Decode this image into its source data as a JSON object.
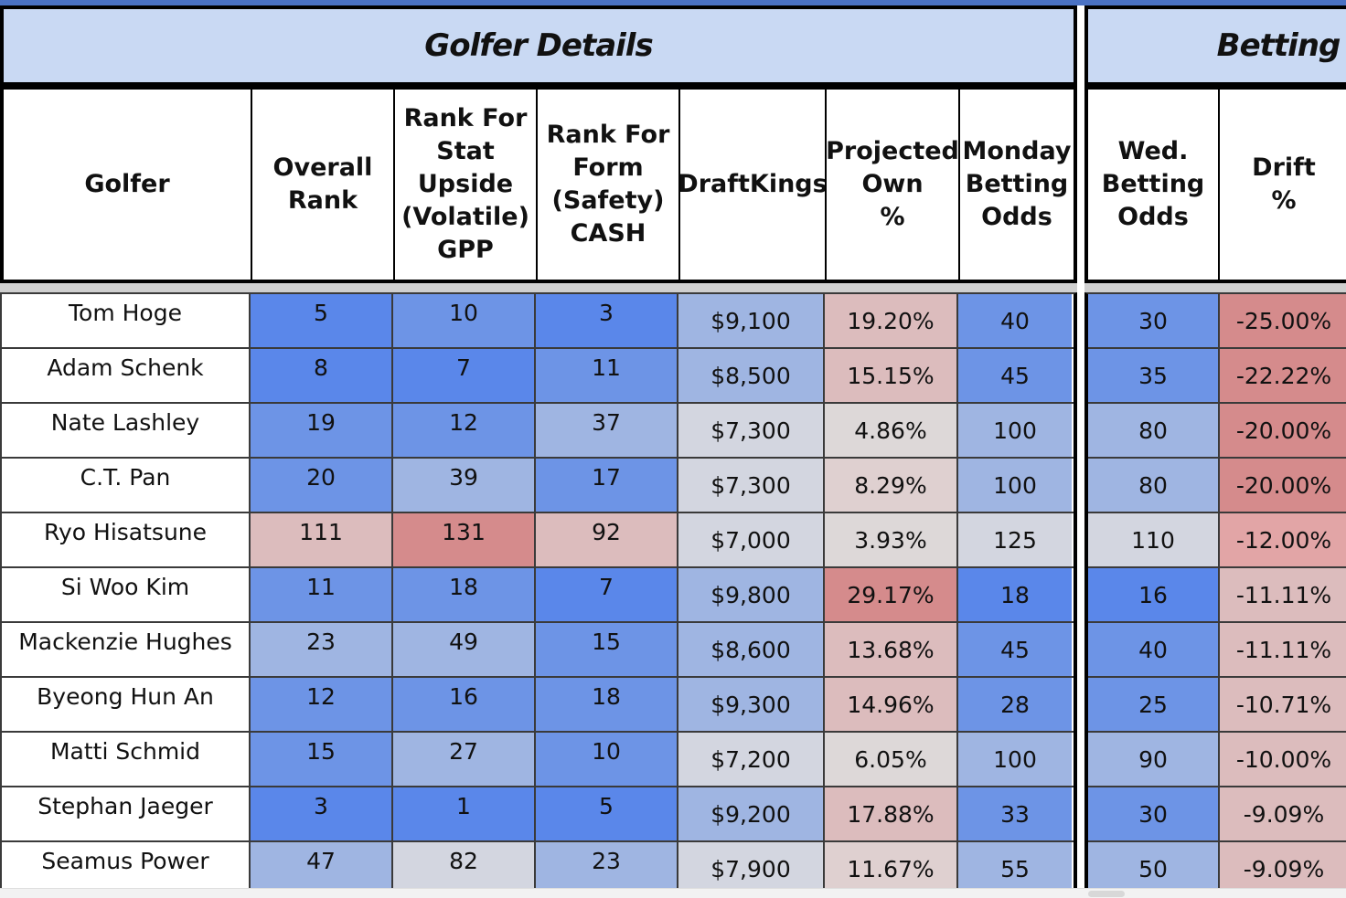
{
  "sections": {
    "golfer_details": "Golfer Details",
    "betting": "Betting"
  },
  "headers_a": [
    "Golfer",
    "Overall\nRank",
    "Rank For\nStat\nUpside\n(Volatile)\nGPP",
    "Rank For\nForm\n(Safety)\nCASH",
    "DraftKings",
    "Projected\nOwn\n%",
    "Monday\nBetting\nOdds"
  ],
  "headers_b": [
    "Wed.\nBetting\nOdds",
    "Drift\n%"
  ],
  "rows": [
    {
      "golfer": "Tom Hoge",
      "overall_rank": "5",
      "gpp_rank": "10",
      "cash_rank": "3",
      "draftkings": "$9,100",
      "proj_own": "19.20%",
      "monday_odds": "40",
      "wed_odds": "30",
      "drift": "-25.00%"
    },
    {
      "golfer": "Adam Schenk",
      "overall_rank": "8",
      "gpp_rank": "7",
      "cash_rank": "11",
      "draftkings": "$8,500",
      "proj_own": "15.15%",
      "monday_odds": "45",
      "wed_odds": "35",
      "drift": "-22.22%"
    },
    {
      "golfer": "Nate Lashley",
      "overall_rank": "19",
      "gpp_rank": "12",
      "cash_rank": "37",
      "draftkings": "$7,300",
      "proj_own": "4.86%",
      "monday_odds": "100",
      "wed_odds": "80",
      "drift": "-20.00%"
    },
    {
      "golfer": "C.T. Pan",
      "overall_rank": "20",
      "gpp_rank": "39",
      "cash_rank": "17",
      "draftkings": "$7,300",
      "proj_own": "8.29%",
      "monday_odds": "100",
      "wed_odds": "80",
      "drift": "-20.00%"
    },
    {
      "golfer": "Ryo Hisatsune",
      "overall_rank": "111",
      "gpp_rank": "131",
      "cash_rank": "92",
      "draftkings": "$7,000",
      "proj_own": "3.93%",
      "monday_odds": "125",
      "wed_odds": "110",
      "drift": "-12.00%"
    },
    {
      "golfer": "Si Woo Kim",
      "overall_rank": "11",
      "gpp_rank": "18",
      "cash_rank": "7",
      "draftkings": "$9,800",
      "proj_own": "29.17%",
      "monday_odds": "18",
      "wed_odds": "16",
      "drift": "-11.11%"
    },
    {
      "golfer": "Mackenzie Hughes",
      "overall_rank": "23",
      "gpp_rank": "49",
      "cash_rank": "15",
      "draftkings": "$8,600",
      "proj_own": "13.68%",
      "monday_odds": "45",
      "wed_odds": "40",
      "drift": "-11.11%"
    },
    {
      "golfer": "Byeong Hun An",
      "overall_rank": "12",
      "gpp_rank": "16",
      "cash_rank": "18",
      "draftkings": "$9,300",
      "proj_own": "14.96%",
      "monday_odds": "28",
      "wed_odds": "25",
      "drift": "-10.71%"
    },
    {
      "golfer": "Matti Schmid",
      "overall_rank": "15",
      "gpp_rank": "27",
      "cash_rank": "10",
      "draftkings": "$7,200",
      "proj_own": "6.05%",
      "monday_odds": "100",
      "wed_odds": "90",
      "drift": "-10.00%"
    },
    {
      "golfer": "Stephan Jaeger",
      "overall_rank": "3",
      "gpp_rank": "1",
      "cash_rank": "5",
      "draftkings": "$9,200",
      "proj_own": "17.88%",
      "monday_odds": "33",
      "wed_odds": "30",
      "drift": "-9.09%"
    },
    {
      "golfer": "Seamus Power",
      "overall_rank": "47",
      "gpp_rank": "82",
      "cash_rank": "23",
      "draftkings": "$7,900",
      "proj_own": "11.67%",
      "monday_odds": "55",
      "wed_odds": "50",
      "drift": "-9.09%"
    }
  ],
  "heat_colors": {
    "strong_blue": "#5a87ea",
    "blue": "#6d94e6",
    "light_blue": "#9fb5e2",
    "neutral": "#d3d6e0",
    "light_red": "#dcbcbd",
    "red": "#d58b8c"
  }
}
